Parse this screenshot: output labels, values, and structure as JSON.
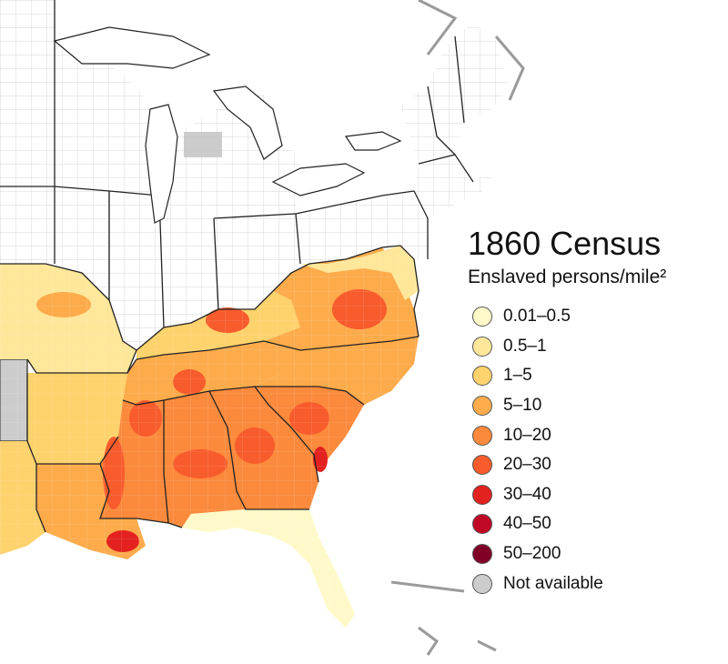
{
  "title": "1860 Census",
  "subtitle": "Enslaved persons/mile²",
  "legend": [
    {
      "label": "0.01–0.5",
      "color": "#fff9c9"
    },
    {
      "label": "0.5–1",
      "color": "#fee79a"
    },
    {
      "label": "1–5",
      "color": "#fed26c"
    },
    {
      "label": "5–10",
      "color": "#fdab4b"
    },
    {
      "label": "10–20",
      "color": "#fc8a3c"
    },
    {
      "label": "20–30",
      "color": "#f85b2c"
    },
    {
      "label": "30–40",
      "color": "#e3221f"
    },
    {
      "label": "40–50",
      "color": "#c10826"
    },
    {
      "label": "50–200",
      "color": "#800026"
    },
    {
      "label": "Not available",
      "color": "#cccccc"
    }
  ],
  "map_colors": {
    "free_state": "#ffffff",
    "county_border": "#c4c4c4",
    "state_border": "#222222",
    "outside_land": "#ffffff",
    "water": "#ffffff",
    "coast_gray": "#9a9a9a"
  }
}
